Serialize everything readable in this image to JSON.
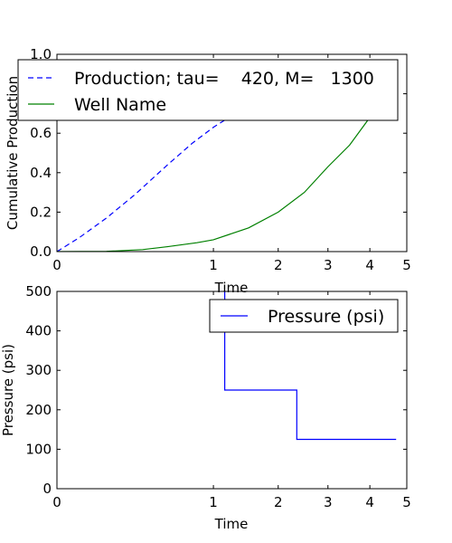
{
  "chart_data": [
    {
      "type": "line",
      "xlabel": "Time",
      "ylabel": "Cumulative Production",
      "xscale": "sqrt",
      "xlim": [
        0,
        5
      ],
      "ylim": [
        0,
        1.0
      ],
      "xticks": [
        0,
        1,
        2,
        3,
        4,
        5
      ],
      "yticks": [
        0.0,
        0.2,
        0.4,
        0.6,
        0.8,
        1.0
      ],
      "ytick_labels": [
        "0.0",
        "0.2",
        "0.4",
        "0.6",
        "0.8",
        "1.0"
      ],
      "legend_position": "top",
      "series": [
        {
          "name": "Production; tau=    420, M=   1300",
          "style": "dashed",
          "color": "#0000ff",
          "x": [
            0,
            0.02,
            0.1,
            0.25,
            0.5,
            0.75,
            1.0,
            1.3,
            1.6
          ],
          "y": [
            0,
            0.07,
            0.17,
            0.29,
            0.44,
            0.55,
            0.63,
            0.7,
            0.76
          ]
        },
        {
          "name": "Well Name",
          "style": "solid",
          "color": "#008000",
          "x": [
            0,
            0.1,
            0.3,
            0.5,
            0.8,
            1.0,
            1.5,
            2.0,
            2.5,
            3.0,
            3.5,
            4.0
          ],
          "y": [
            0,
            0.001,
            0.01,
            0.025,
            0.045,
            0.06,
            0.12,
            0.2,
            0.3,
            0.43,
            0.54,
            0.68
          ]
        }
      ]
    },
    {
      "type": "line",
      "xlabel": "Time",
      "ylabel": "Pressure (psi)",
      "xscale": "sqrt",
      "xlim": [
        0,
        5
      ],
      "ylim": [
        0,
        500
      ],
      "xticks": [
        0,
        1,
        2,
        3,
        4,
        5
      ],
      "yticks": [
        0,
        100,
        200,
        300,
        400,
        500
      ],
      "ytick_labels": [
        "0",
        "100",
        "200",
        "300",
        "400",
        "500"
      ],
      "legend_position": "top-right",
      "series": [
        {
          "name": "Pressure (psi)",
          "style": "solid",
          "color": "#0000ff",
          "x": [
            1.15,
            1.15,
            1.15,
            2.35,
            2.35,
            4.7
          ],
          "y": [
            500,
            500,
            250,
            250,
            125,
            125
          ]
        }
      ]
    }
  ]
}
